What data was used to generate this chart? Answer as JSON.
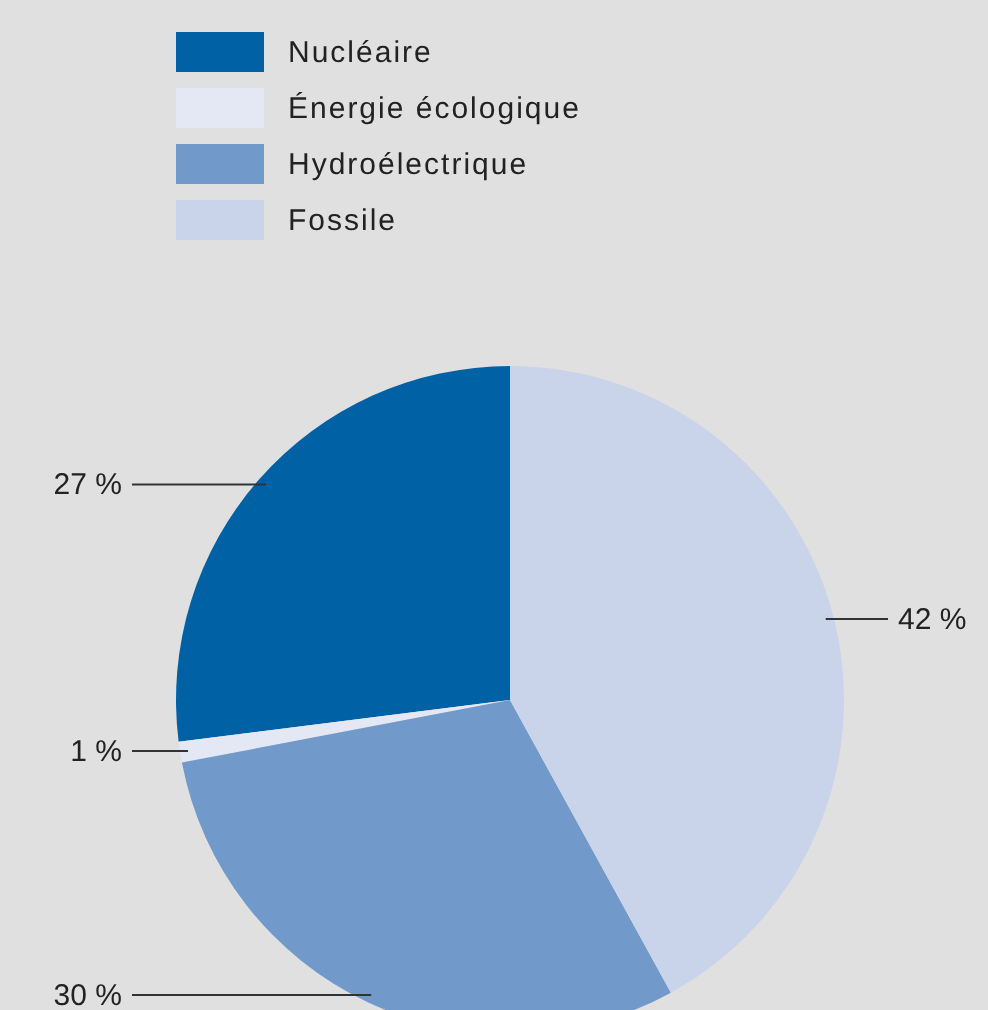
{
  "chart_data": {
    "type": "pie",
    "categories": [
      "Nucléaire",
      "Énergie écologique",
      "Hydroélectrique",
      "Fossile"
    ],
    "values": [
      27,
      1,
      30,
      42
    ],
    "colors": [
      "#0062a4",
      "#e4e8f4",
      "#7199c9",
      "#c9d4ea"
    ],
    "value_labels": [
      "27 %",
      "1 %",
      "30 %",
      "42 %"
    ],
    "legend": "top"
  }
}
